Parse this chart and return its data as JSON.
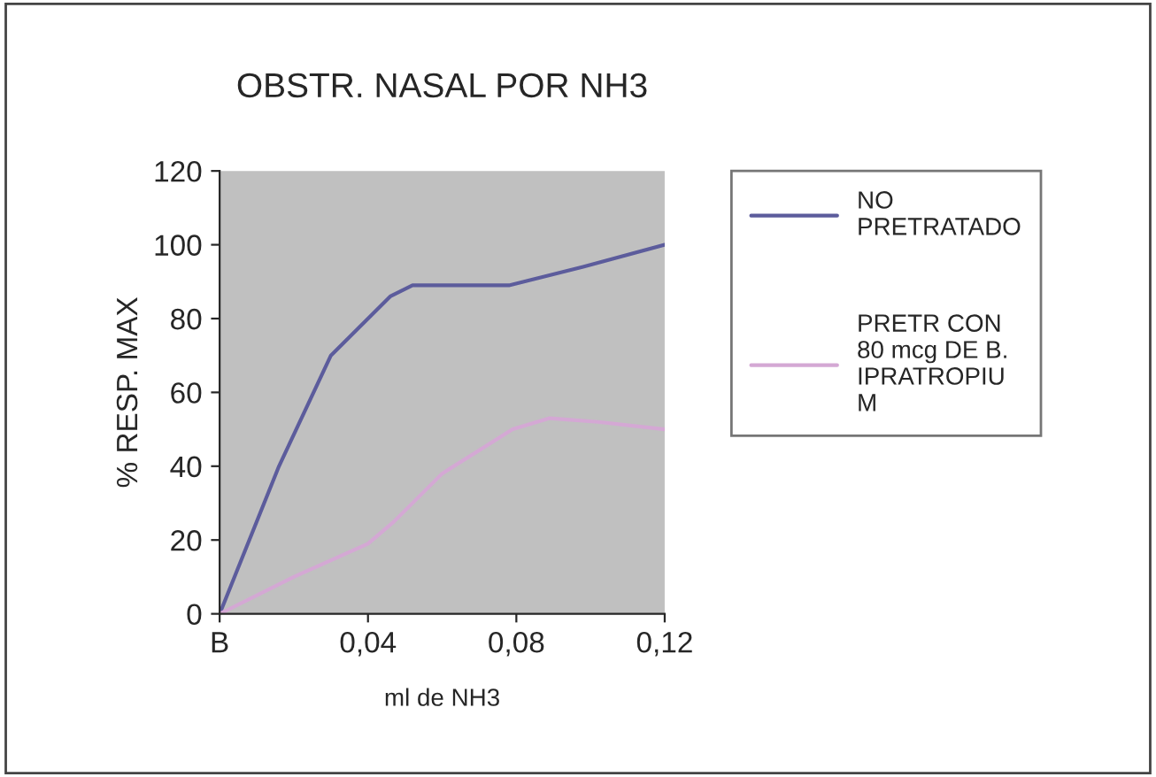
{
  "chart_data": {
    "type": "line",
    "title": "OBSTR. NASAL POR NH3",
    "xlabel": "ml de NH3",
    "ylabel": "% RESP. MAX",
    "series": [
      {
        "name": "NO\nPRETRATADO",
        "color": "#5c5c9c",
        "x": [
          0,
          0.016,
          0.03,
          0.04,
          0.046,
          0.052,
          0.078,
          0.098,
          0.12
        ],
        "values": [
          0,
          40,
          70,
          80,
          86,
          89,
          89,
          94,
          100
        ]
      },
      {
        "name": "PRETR CON\n80 mcg DE B.\nIPRATROPIU\nM",
        "color": "#d4a8d4",
        "x": [
          0,
          0.02,
          0.04,
          0.047,
          0.06,
          0.079,
          0.089,
          0.102,
          0.12
        ],
        "values": [
          0,
          10,
          19,
          25,
          38,
          50,
          53,
          52,
          50
        ]
      }
    ],
    "xlim": [
      0,
      0.12
    ],
    "xticks": [
      {
        "value": 0,
        "label": "B"
      },
      {
        "value": 0.04,
        "label": "0,04"
      },
      {
        "value": 0.08,
        "label": "0,08"
      },
      {
        "value": 0.12,
        "label": "0,12"
      }
    ],
    "ylim": [
      0,
      120
    ],
    "yticks": [
      0,
      20,
      40,
      60,
      80,
      100,
      120
    ],
    "grid": false,
    "legend": "right",
    "marker": "none",
    "line_style": "solid"
  }
}
